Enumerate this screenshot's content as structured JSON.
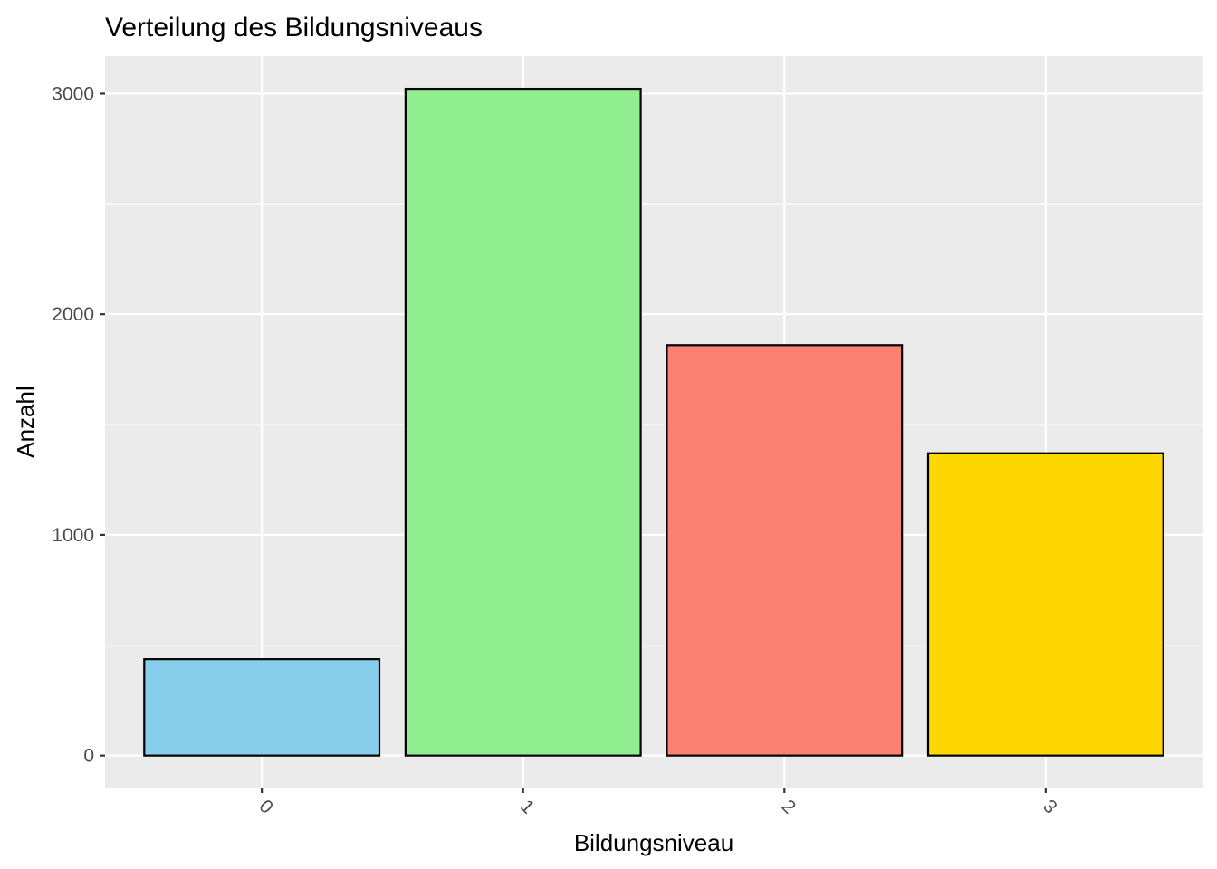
{
  "chart_data": {
    "type": "bar",
    "title": "Verteilung des Bildungsniveaus",
    "xlabel": "Bildungsniveau",
    "ylabel": "Anzahl",
    "categories": [
      "0",
      "1",
      "2",
      "3"
    ],
    "values": [
      437,
      3022,
      1860,
      1370
    ],
    "colors": [
      "#87ceeb",
      "#90ee90",
      "#fa8072",
      "#ffd700"
    ],
    "ylim": [
      -145,
      3170
    ],
    "yticks": [
      0,
      1000,
      2000,
      3000
    ],
    "yticks_minor": [
      500,
      1500,
      2500
    ],
    "ytick_labels": [
      "0",
      "1000",
      "2000",
      "3000"
    ],
    "grid": true,
    "legend": "none",
    "xtick_rotation": 45
  }
}
